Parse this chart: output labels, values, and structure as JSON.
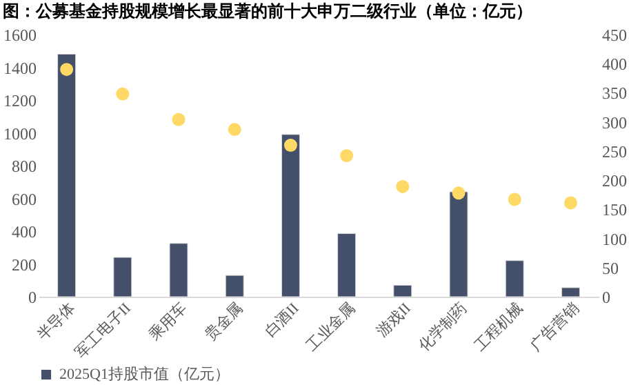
{
  "chart_data": {
    "type": "bar",
    "title": "图：公募基金持股规模增长最显著的前十大申万二级行业（单位：亿元）",
    "categories": [
      "半导体",
      "军工电子II",
      "乘用车",
      "贵金属",
      "白酒II",
      "工业金属",
      "游戏II",
      "化学制药",
      "工程机械",
      "广告营销"
    ],
    "series": [
      {
        "name": "2025Q1持股市值（亿元）",
        "color": "#44506a",
        "values": [
          1480,
          240,
          325,
          130,
          990,
          385,
          70,
          640,
          220,
          55
        ]
      },
      {
        "type": "scatter",
        "axis": "y2",
        "color": "#ffd966",
        "marker": "circle",
        "values": [
          390,
          348,
          304,
          287,
          260,
          242,
          189,
          178,
          167,
          161
        ]
      }
    ],
    "ylim": [
      0,
      1600
    ],
    "yticks": [
      0,
      200,
      400,
      600,
      800,
      1000,
      1200,
      1400,
      1600
    ],
    "y2lim": [
      0,
      450
    ],
    "y2ticks": [
      0,
      50,
      100,
      150,
      200,
      250,
      300,
      350,
      400,
      450
    ],
    "grid": false,
    "legend": "bottom left"
  }
}
